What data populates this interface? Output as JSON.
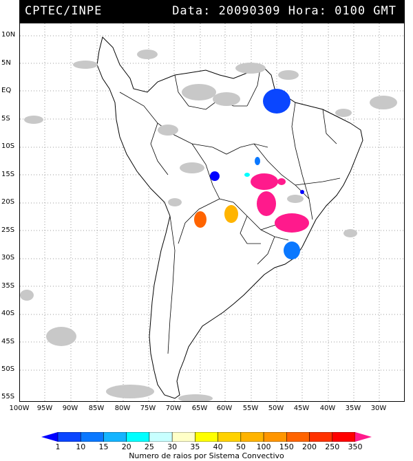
{
  "header": {
    "agency": "CPTEC/INPE",
    "datetime": "Data: 20090309 Hora: 0100 GMT"
  },
  "latitude_labels": [
    "10N",
    "5N",
    "EQ",
    "5S",
    "10S",
    "15S",
    "20S",
    "25S",
    "30S",
    "35S",
    "40S",
    "45S",
    "50S",
    "55S"
  ],
  "longitude_labels": [
    "100W",
    "95W",
    "90W",
    "85W",
    "80W",
    "75W",
    "70W",
    "65W",
    "60W",
    "55W",
    "50W",
    "45W",
    "40W",
    "35W",
    "30W"
  ],
  "colorbar": {
    "ticks": [
      "1",
      "10",
      "15",
      "20",
      "25",
      "30",
      "35",
      "40",
      "50",
      "100",
      "150",
      "200",
      "250",
      "350"
    ],
    "colors": [
      "#0000ff",
      "#0a46ff",
      "#0a78ff",
      "#14b4ff",
      "#00ffff",
      "#c8ffff",
      "#ffffc8",
      "#ffff00",
      "#ffd200",
      "#ffb400",
      "#ff9600",
      "#ff6400",
      "#ff3200",
      "#ff0000",
      "#ff1a8c"
    ],
    "caption": "Numero de raios por Sistema Convectivo"
  },
  "map": {
    "features": [
      "coastline",
      "country-borders",
      "state-borders",
      "cloud-cover",
      "lightning-clusters"
    ],
    "cloud_color": "#c8c8c8"
  }
}
